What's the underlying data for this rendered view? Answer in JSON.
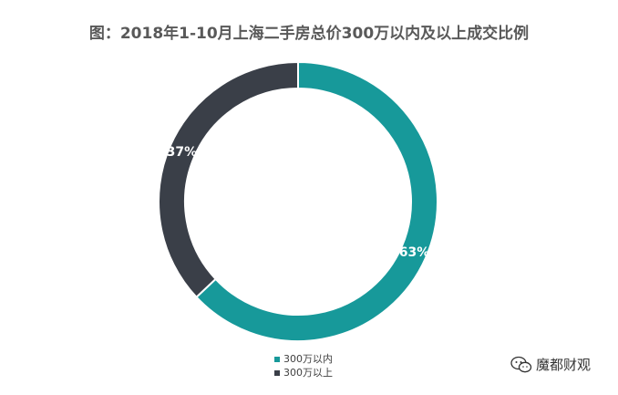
{
  "chart_data": {
    "type": "pie",
    "variant": "donut",
    "title": "图：2018年1-10月上海二手房总价300万以内及以上成交比例",
    "categories": [
      "300万以内",
      "300万以上"
    ],
    "values": [
      63,
      37
    ],
    "data_labels": [
      "63%",
      "37%"
    ],
    "colors": [
      "#17999a",
      "#3a3f48"
    ],
    "legend_placement": "bottom"
  },
  "watermark": {
    "text": "魔都财观",
    "icon": "wechat-icon"
  }
}
